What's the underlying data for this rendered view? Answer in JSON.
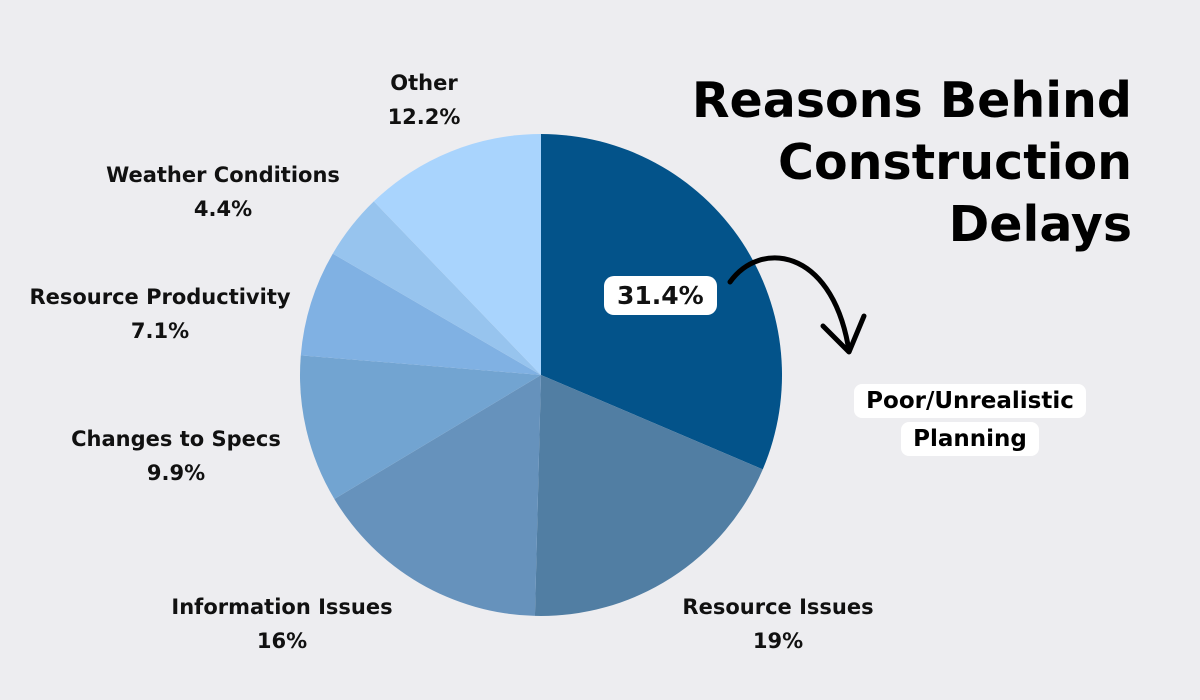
{
  "title_lines": [
    "Reasons Behind",
    "Construction",
    "Delays"
  ],
  "chart_data": {
    "type": "pie",
    "title": "Reasons Behind Construction Delays",
    "start_angle_deg": 0,
    "direction": "clockwise",
    "slices": [
      {
        "label": "Poor/Unrealistic Planning",
        "value": 31.4,
        "display": "31.4%",
        "color": "#03538a"
      },
      {
        "label": "Resource Issues",
        "value": 19,
        "display": "19%",
        "color": "#517ea3"
      },
      {
        "label": "Information Issues",
        "value": 16,
        "display": "16%",
        "color": "#6692bc"
      },
      {
        "label": "Changes to Specs",
        "value": 9.9,
        "display": "9.9%",
        "color": "#72a4d1"
      },
      {
        "label": "Resource Productivity",
        "value": 7.1,
        "display": "7.1%",
        "color": "#80b1e3"
      },
      {
        "label": "Weather Conditions",
        "value": 4.4,
        "display": "4.4%",
        "color": "#97c4ee"
      },
      {
        "label": "Other",
        "value": 12.2,
        "display": "12.2%",
        "color": "#a9d4fd"
      }
    ]
  },
  "badge_text": "31.4%",
  "callout_lines": [
    "Poor/Unrealistic",
    "Planning"
  ],
  "labels": [
    {
      "name": "Resource Issues",
      "pct": "19%"
    },
    {
      "name": "Information Issues",
      "pct": "16%"
    },
    {
      "name": "Changes to Specs",
      "pct": "9.9%"
    },
    {
      "name": "Resource Productivity",
      "pct": "7.1%"
    },
    {
      "name": "Weather Conditions",
      "pct": "4.4%"
    },
    {
      "name": "Other",
      "pct": "12.2%"
    }
  ]
}
